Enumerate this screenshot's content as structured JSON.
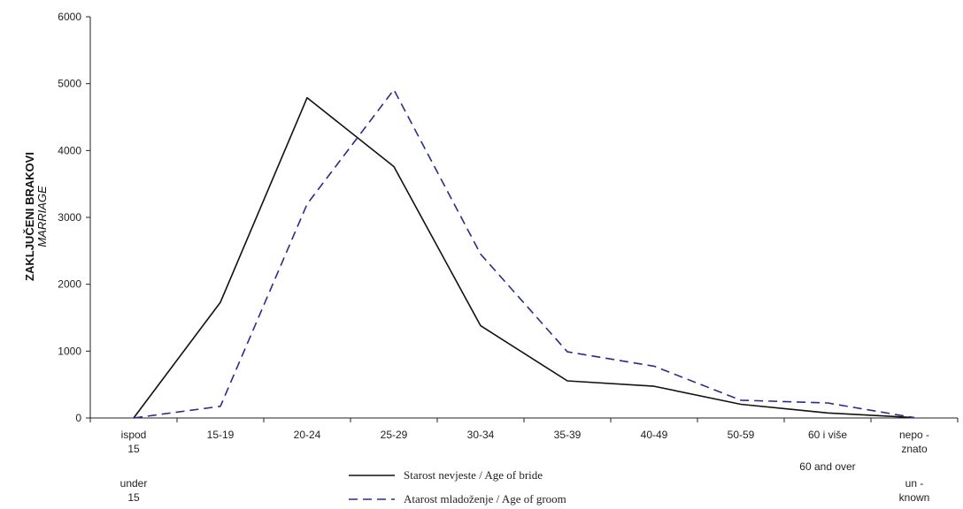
{
  "chart_data": {
    "type": "line",
    "ylabel_main": "ZAKLJUČENI BRAKOVI",
    "ylabel_sub": "MARRIAGE",
    "ylim": [
      0,
      6000
    ],
    "yticks": [
      "0",
      "1000",
      "2000",
      "3000",
      "4000",
      "5000",
      "6000"
    ],
    "categories": [
      {
        "lines": [
          "ispod",
          "15"
        ],
        "en": [
          "under",
          "15"
        ]
      },
      {
        "lines": [
          "15-19"
        ],
        "en": []
      },
      {
        "lines": [
          "20-24"
        ],
        "en": []
      },
      {
        "lines": [
          "25-29"
        ],
        "en": []
      },
      {
        "lines": [
          "30-34"
        ],
        "en": []
      },
      {
        "lines": [
          "35-39"
        ],
        "en": []
      },
      {
        "lines": [
          "40-49"
        ],
        "en": []
      },
      {
        "lines": [
          "50-59"
        ],
        "en": []
      },
      {
        "lines": [
          "60 i više"
        ],
        "en": [
          "60 and over"
        ]
      },
      {
        "lines": [
          "nepo -",
          "znato"
        ],
        "en": [
          "un -",
          "known"
        ]
      }
    ],
    "series": [
      {
        "name": "Starost nevjeste / Age of bride",
        "style": "solid",
        "color": "#111111",
        "values": [
          0,
          1730,
          4790,
          3760,
          1380,
          555,
          475,
          205,
          75,
          5
        ]
      },
      {
        "name": "Atarost mladoženje / Age of groom",
        "style": "dashed",
        "color": "#2b2b8c",
        "values": [
          0,
          175,
          3200,
          4910,
          2450,
          990,
          775,
          265,
          225,
          5
        ]
      }
    ],
    "grid": false,
    "legend_position": "bottom-center"
  }
}
